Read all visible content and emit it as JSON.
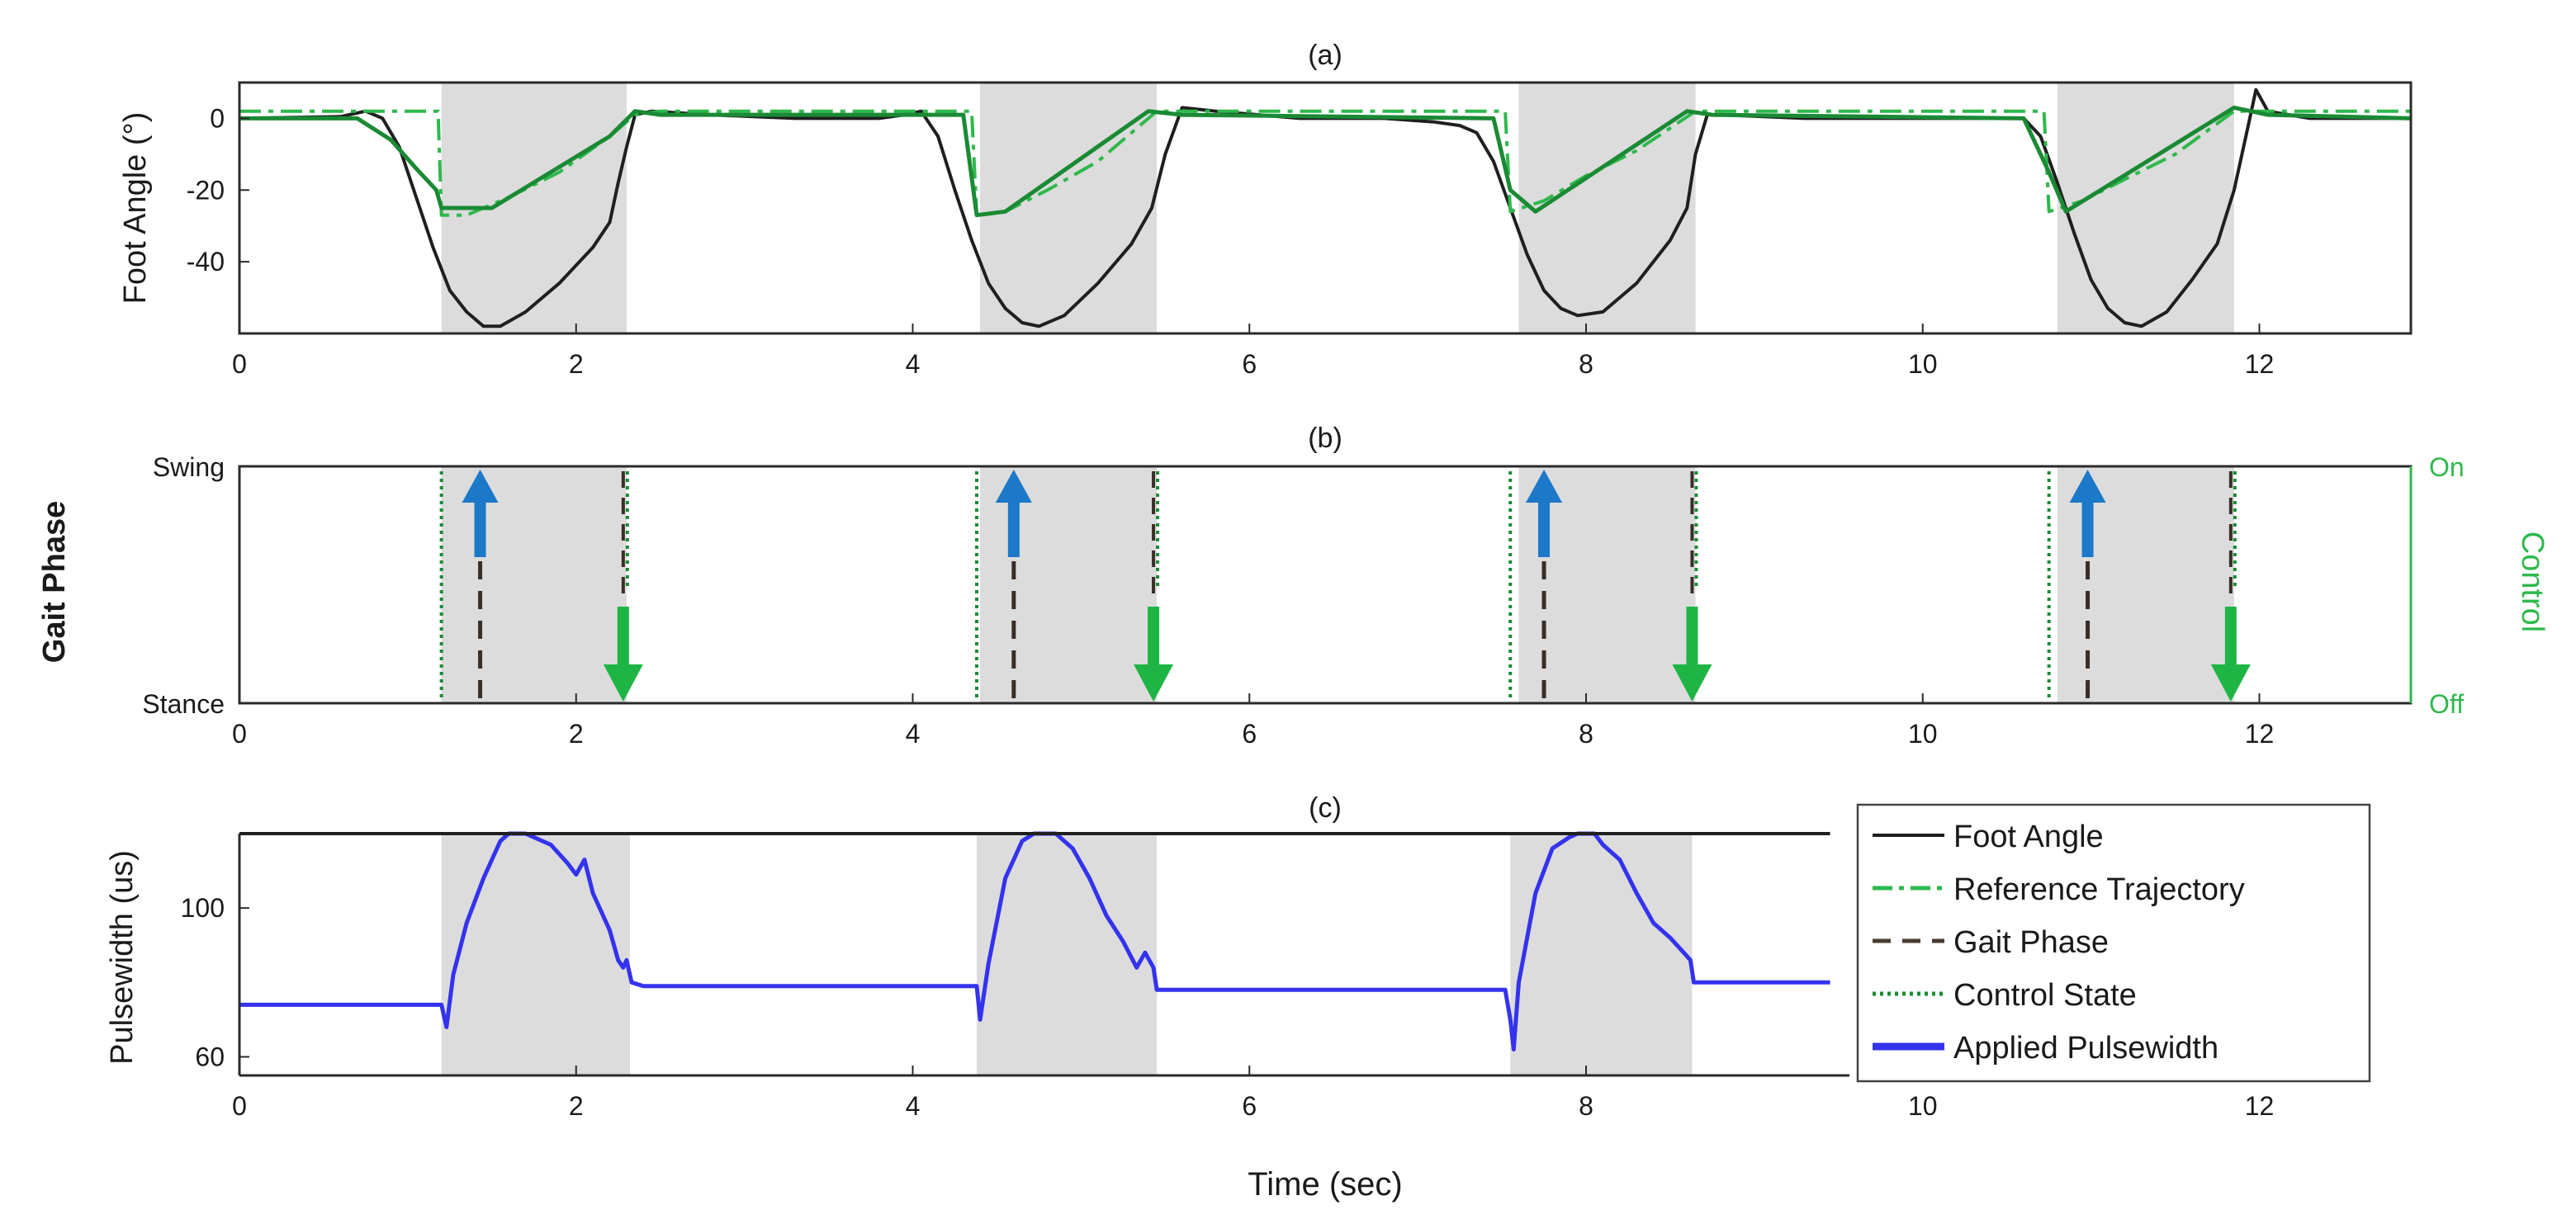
{
  "chart_data": [
    {
      "panel": "a",
      "type": "line",
      "title": "(a)",
      "xlabel": "",
      "ylabel": "Foot Angle (°)",
      "xlim": [
        0,
        12.9
      ],
      "ylim": [
        -60,
        10
      ],
      "xticks": [
        0,
        2,
        4,
        6,
        8,
        10,
        12
      ],
      "yticks": [
        0,
        -20,
        -40
      ],
      "shaded_intervals": [
        [
          1.2,
          2.3
        ],
        [
          4.4,
          5.45
        ],
        [
          7.6,
          8.65
        ],
        [
          10.8,
          11.85
        ]
      ],
      "series": [
        {
          "name": "Foot Angle",
          "color": "#1f1f1f",
          "style": "solid",
          "points": [
            [
              0,
              0
            ],
            [
              0.6,
              0.5
            ],
            [
              0.75,
              2
            ],
            [
              0.85,
              0
            ],
            [
              0.95,
              -8
            ],
            [
              1.05,
              -22
            ],
            [
              1.15,
              -36
            ],
            [
              1.25,
              -48
            ],
            [
              1.35,
              -54
            ],
            [
              1.45,
              -58
            ],
            [
              1.55,
              -58
            ],
            [
              1.7,
              -54
            ],
            [
              1.9,
              -46
            ],
            [
              2.1,
              -36
            ],
            [
              2.2,
              -29
            ],
            [
              2.25,
              -18
            ],
            [
              2.3,
              -8
            ],
            [
              2.35,
              1
            ],
            [
              2.45,
              2
            ],
            [
              2.8,
              1
            ],
            [
              3.3,
              0
            ],
            [
              3.8,
              0
            ],
            [
              3.95,
              1
            ],
            [
              4.05,
              2
            ],
            [
              4.15,
              -5
            ],
            [
              4.25,
              -20
            ],
            [
              4.35,
              -34
            ],
            [
              4.45,
              -46
            ],
            [
              4.55,
              -53
            ],
            [
              4.65,
              -57
            ],
            [
              4.75,
              -58
            ],
            [
              4.9,
              -55
            ],
            [
              5.1,
              -46
            ],
            [
              5.3,
              -35
            ],
            [
              5.42,
              -25
            ],
            [
              5.5,
              -10
            ],
            [
              5.6,
              3
            ],
            [
              5.8,
              2
            ],
            [
              6.3,
              0
            ],
            [
              6.8,
              0
            ],
            [
              7.1,
              -1
            ],
            [
              7.25,
              -2
            ],
            [
              7.35,
              -4
            ],
            [
              7.45,
              -12
            ],
            [
              7.55,
              -25
            ],
            [
              7.65,
              -38
            ],
            [
              7.75,
              -48
            ],
            [
              7.85,
              -53
            ],
            [
              7.95,
              -55
            ],
            [
              8.1,
              -54
            ],
            [
              8.3,
              -46
            ],
            [
              8.5,
              -34
            ],
            [
              8.6,
              -25
            ],
            [
              8.65,
              -10
            ],
            [
              8.72,
              1
            ],
            [
              8.8,
              1
            ],
            [
              9.3,
              0
            ],
            [
              9.8,
              0
            ],
            [
              10.3,
              0
            ],
            [
              10.6,
              0
            ],
            [
              10.7,
              -5
            ],
            [
              10.8,
              -18
            ],
            [
              10.9,
              -32
            ],
            [
              11,
              -45
            ],
            [
              11.1,
              -53
            ],
            [
              11.2,
              -57
            ],
            [
              11.3,
              -58
            ],
            [
              11.45,
              -54
            ],
            [
              11.6,
              -45
            ],
            [
              11.75,
              -35
            ],
            [
              11.85,
              -20
            ],
            [
              11.92,
              -5
            ],
            [
              11.98,
              8
            ],
            [
              12.05,
              2
            ],
            [
              12.3,
              0
            ],
            [
              12.9,
              0
            ]
          ]
        },
        {
          "name": "Reference Trajectory",
          "color": "#2eb84c",
          "style": "dash-dot",
          "points": [
            [
              0,
              2
            ],
            [
              1.18,
              2
            ],
            [
              1.2,
              -27
            ],
            [
              1.35,
              -27
            ],
            [
              1.6,
              -22
            ],
            [
              1.9,
              -15
            ],
            [
              2.2,
              -5
            ],
            [
              2.35,
              1
            ],
            [
              2.5,
              2
            ],
            [
              4.35,
              2
            ],
            [
              4.38,
              -27
            ],
            [
              4.55,
              -26
            ],
            [
              4.8,
              -20
            ],
            [
              5.1,
              -12
            ],
            [
              5.45,
              2
            ],
            [
              5.6,
              2
            ],
            [
              7.52,
              2
            ],
            [
              7.55,
              -26
            ],
            [
              7.75,
              -23
            ],
            [
              8,
              -16
            ],
            [
              8.3,
              -9
            ],
            [
              8.65,
              2
            ],
            [
              8.8,
              2
            ],
            [
              10.72,
              2
            ],
            [
              10.75,
              -26
            ],
            [
              10.95,
              -23
            ],
            [
              11.2,
              -17
            ],
            [
              11.5,
              -10
            ],
            [
              11.85,
              2
            ],
            [
              12.9,
              2
            ]
          ]
        },
        {
          "name": "Control State",
          "color": "#1a8a34",
          "style": "solid",
          "points": [
            [
              0,
              0
            ],
            [
              0.7,
              0
            ],
            [
              0.9,
              -6
            ],
            [
              1.05,
              -14
            ],
            [
              1.17,
              -20
            ],
            [
              1.2,
              -25
            ],
            [
              1.5,
              -25
            ],
            [
              2.2,
              -5
            ],
            [
              2.35,
              2
            ],
            [
              2.5,
              1
            ],
            [
              4.3,
              1
            ],
            [
              4.38,
              -27
            ],
            [
              4.55,
              -26
            ],
            [
              5.4,
              2
            ],
            [
              5.6,
              1
            ],
            [
              7.45,
              0
            ],
            [
              7.55,
              -20
            ],
            [
              7.7,
              -26
            ],
            [
              8.6,
              2
            ],
            [
              8.75,
              1
            ],
            [
              10.6,
              0
            ],
            [
              10.75,
              -15
            ],
            [
              10.85,
              -26
            ],
            [
              11.85,
              3
            ],
            [
              12.05,
              1
            ],
            [
              12.9,
              0
            ]
          ]
        }
      ]
    },
    {
      "panel": "b",
      "type": "line",
      "title": "(b)",
      "xlabel": "",
      "ylabel": "Gait Phase",
      "ylabel_right": "Control",
      "xlim": [
        0,
        12.9
      ],
      "xticks": [
        0,
        2,
        4,
        6,
        8,
        10,
        12
      ],
      "y_categories": [
        "Stance",
        "Swing"
      ],
      "right_categories": [
        "Off",
        "On"
      ],
      "shaded_intervals": [
        [
          1.2,
          2.3
        ],
        [
          4.4,
          5.45
        ],
        [
          7.6,
          8.65
        ],
        [
          10.8,
          11.85
        ]
      ],
      "control_on_times": [
        1.2,
        4.38,
        7.55,
        10.75
      ],
      "control_off_times": [
        2.28,
        5.43,
        8.63,
        11.83
      ],
      "swing_times": [
        1.43,
        4.6,
        7.75,
        10.98
      ],
      "stance_times": [
        2.28,
        5.43,
        8.63,
        11.83
      ],
      "annotations": [
        "blue up arrow at each swing onset",
        "green down arrow at each control off"
      ]
    },
    {
      "panel": "c",
      "type": "line",
      "title": "(c)",
      "xlabel": "Time (sec)",
      "ylabel": "Pulsewidth (us)",
      "xlim": [
        0,
        12.9
      ],
      "ylim": [
        55,
        120
      ],
      "xticks": [
        0,
        2,
        4,
        6,
        8,
        10,
        12
      ],
      "yticks": [
        100,
        60
      ],
      "shaded_intervals": [
        [
          1.2,
          2.32
        ],
        [
          4.38,
          5.45
        ],
        [
          7.55,
          8.63
        ]
      ],
      "series": [
        {
          "name": "Applied Pulsewidth",
          "color": "#3333ee",
          "style": "solid",
          "points": [
            [
              0,
              74
            ],
            [
              1.2,
              74
            ],
            [
              1.23,
              68
            ],
            [
              1.27,
              82
            ],
            [
              1.35,
              96
            ],
            [
              1.45,
              108
            ],
            [
              1.55,
              118
            ],
            [
              1.6,
              120
            ],
            [
              1.7,
              120
            ],
            [
              1.85,
              117
            ],
            [
              1.95,
              112
            ],
            [
              2.0,
              109
            ],
            [
              2.05,
              113
            ],
            [
              2.1,
              104
            ],
            [
              2.2,
              94
            ],
            [
              2.25,
              86
            ],
            [
              2.28,
              84
            ],
            [
              2.3,
              86
            ],
            [
              2.33,
              80
            ],
            [
              2.4,
              79
            ],
            [
              4.38,
              79
            ],
            [
              4.4,
              70
            ],
            [
              4.45,
              85
            ],
            [
              4.55,
              108
            ],
            [
              4.65,
              118
            ],
            [
              4.72,
              120
            ],
            [
              4.85,
              120
            ],
            [
              4.95,
              116
            ],
            [
              5.05,
              108
            ],
            [
              5.15,
              98
            ],
            [
              5.25,
              91
            ],
            [
              5.33,
              84
            ],
            [
              5.38,
              88
            ],
            [
              5.43,
              84
            ],
            [
              5.45,
              78
            ],
            [
              7.52,
              78
            ],
            [
              7.55,
              70
            ],
            [
              7.57,
              62
            ],
            [
              7.6,
              80
            ],
            [
              7.7,
              104
            ],
            [
              7.8,
              116
            ],
            [
              7.9,
              119
            ],
            [
              7.95,
              120
            ],
            [
              8.05,
              120
            ],
            [
              8.1,
              117
            ],
            [
              8.2,
              113
            ],
            [
              8.3,
              104
            ],
            [
              8.4,
              96
            ],
            [
              8.5,
              92
            ],
            [
              8.58,
              88
            ],
            [
              8.62,
              86
            ],
            [
              8.64,
              80
            ],
            [
              9.45,
              80
            ]
          ]
        },
        {
          "name": "Foot Angle",
          "color": "#1f1f1f",
          "style": "solid",
          "points": [
            [
              0,
              120
            ],
            [
              9.45,
              120
            ]
          ]
        }
      ],
      "legend": {
        "placement": "right",
        "entries": [
          "Foot Angle",
          "Reference Trajectory",
          "Gait Phase",
          "Control State",
          "Applied Pulsewidth"
        ]
      }
    }
  ]
}
